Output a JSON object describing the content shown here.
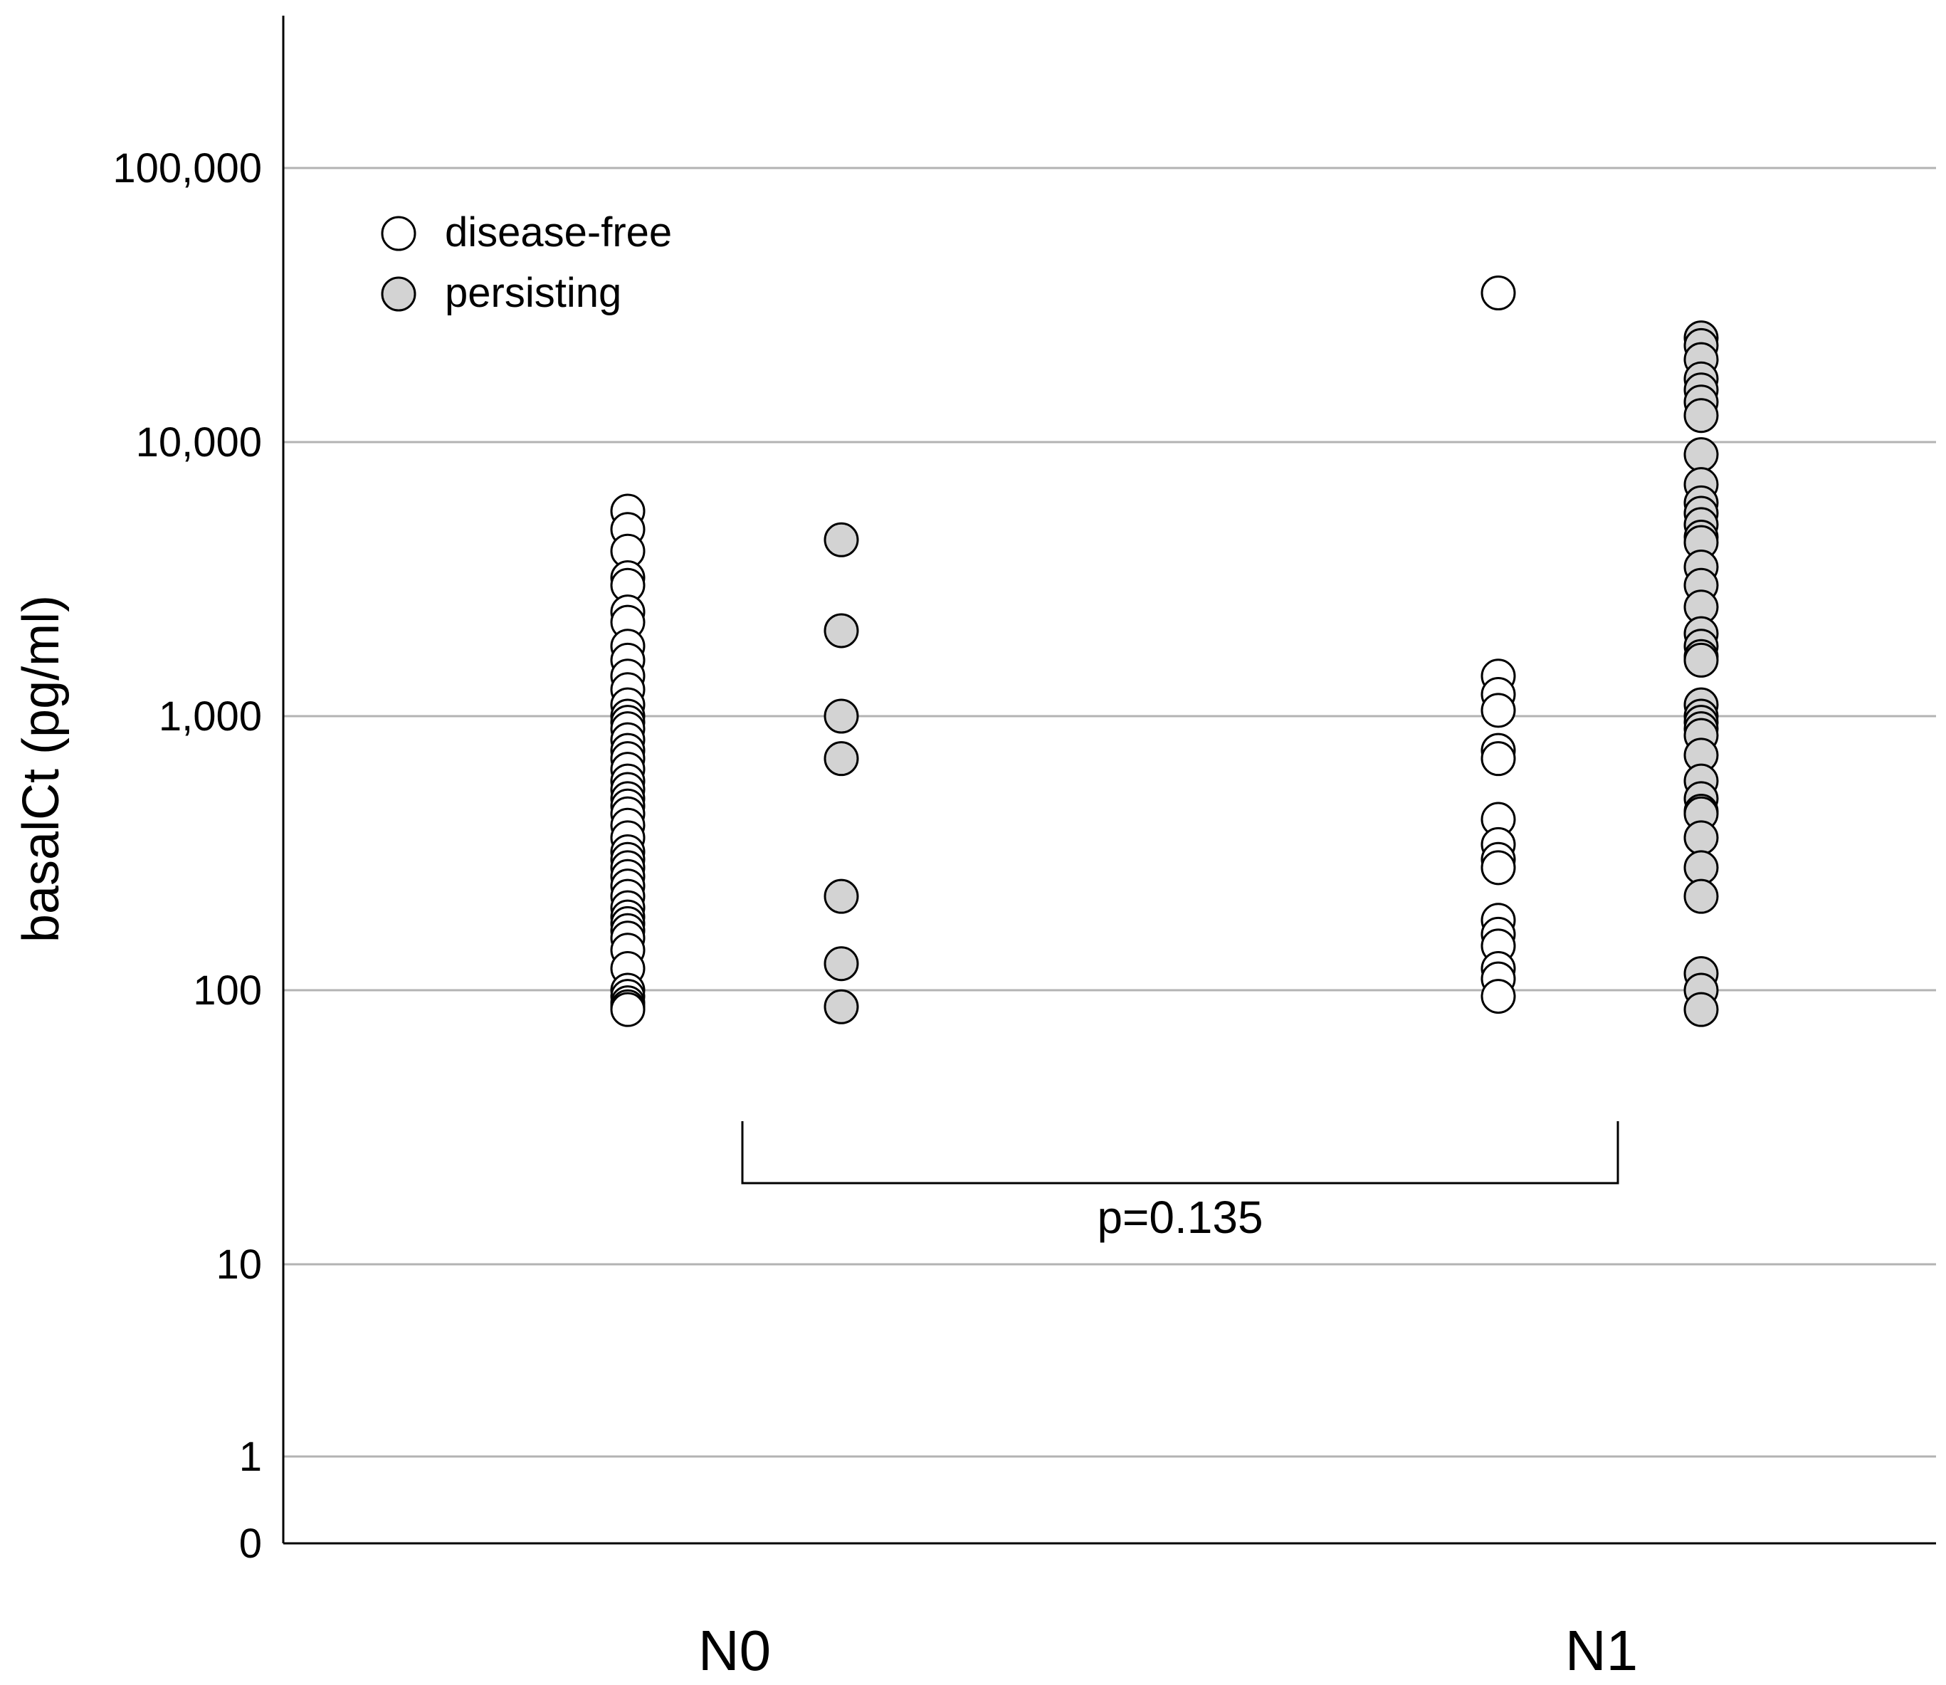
{
  "chart_data": {
    "type": "scatter",
    "title": "",
    "ylabel": "basalCt (pg/ml)",
    "xlabel": "",
    "y_scale": "log",
    "y_ticks": [
      0,
      1,
      10,
      100,
      1000,
      10000,
      100000
    ],
    "y_tick_labels": [
      "0",
      "1",
      "10",
      "100",
      "1,000",
      "10,000",
      "100,000"
    ],
    "categories": [
      "N0",
      "N1"
    ],
    "grid": true,
    "legend_position": "top-left",
    "series": [
      {
        "name": "disease-free",
        "fill": "#ffffff",
        "groups": [
          {
            "category": "N0",
            "values": [
              5600,
              4800,
              4000,
              3200,
              3000,
              2400,
              2200,
              1800,
              1600,
              1400,
              1250,
              1100,
              1000,
              950,
              900,
              820,
              750,
              700,
              640,
              580,
              540,
              500,
              470,
              440,
              400,
              360,
              320,
              300,
              280,
              260,
              240,
              220,
              200,
              185,
              175,
              165,
              155,
              140,
              120,
              100,
              95,
              90,
              87,
              85
            ]
          },
          {
            "category": "N1",
            "values": [
              35000,
              1400,
              1200,
              1050,
              750,
              700,
              420,
              340,
              300,
              280,
              180,
              160,
              145,
              120,
              110,
              95
            ]
          }
        ]
      },
      {
        "name": "persisting",
        "fill": "#d3d3d3",
        "groups": [
          {
            "category": "N0",
            "values": [
              4400,
              2050,
              1000,
              700,
              220,
              125,
              87
            ]
          },
          {
            "category": "N1",
            "values": [
              24000,
              22500,
              20000,
              17000,
              15500,
              14000,
              12500,
              9000,
              7000,
              6000,
              5500,
              5000,
              4500,
              4300,
              3500,
              3000,
              2500,
              2000,
              1800,
              1650,
              1600,
              1100,
              1000,
              950,
              900,
              850,
              720,
              580,
              500,
              450,
              440,
              360,
              280,
              220,
              115,
              100,
              85
            ]
          }
        ]
      }
    ],
    "annotations": [
      {
        "text": "p=0.135",
        "type": "bracket",
        "from": "N0",
        "to": "N1"
      }
    ]
  }
}
